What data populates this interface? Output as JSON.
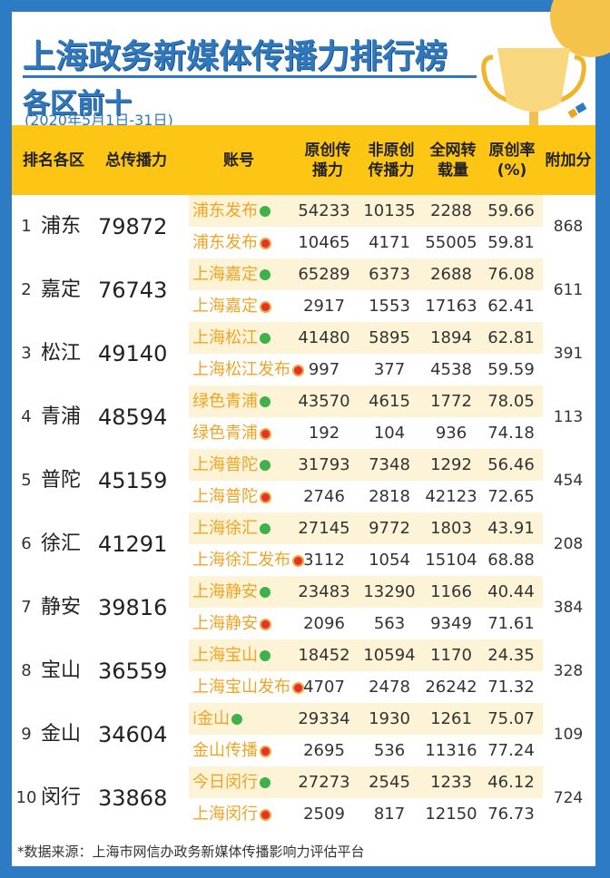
{
  "title": "上海政务新媒体传播力排行榜",
  "subtitle": "各区前十",
  "date": "(2020年5月1日-31日)",
  "colors": {
    "border": "#2c7bc4",
    "header": "#fdc514",
    "account": "#f0a426",
    "title": "#2f78bd",
    "row_highlight": "#fdf3d6"
  },
  "headers": {
    "rank_district": "排名各区",
    "total": "总传播力",
    "account": "账号",
    "original": "原创传播力",
    "non_original": "非原创传播力",
    "reposts": "全网转载量",
    "rate": "原创率(%)",
    "bonus": "附加分"
  },
  "rows": [
    {
      "rank": "1",
      "district": "浦东",
      "total": "79872",
      "bonus": "868",
      "wechat": {
        "account": "浦东发布",
        "original": "54233",
        "non_original": "10135",
        "reposts": "2288",
        "rate": "59.66"
      },
      "weibo": {
        "account": "浦东发布",
        "original": "10465",
        "non_original": "4171",
        "reposts": "55005",
        "rate": "59.81"
      }
    },
    {
      "rank": "2",
      "district": "嘉定",
      "total": "76743",
      "bonus": "611",
      "wechat": {
        "account": "上海嘉定",
        "original": "65289",
        "non_original": "6373",
        "reposts": "2688",
        "rate": "76.08"
      },
      "weibo": {
        "account": "上海嘉定",
        "original": "2917",
        "non_original": "1553",
        "reposts": "17163",
        "rate": "62.41"
      }
    },
    {
      "rank": "3",
      "district": "松江",
      "total": "49140",
      "bonus": "391",
      "wechat": {
        "account": "上海松江",
        "original": "41480",
        "non_original": "5895",
        "reposts": "1894",
        "rate": "62.81"
      },
      "weibo": {
        "account": "上海松江发布",
        "original": "997",
        "non_original": "377",
        "reposts": "4538",
        "rate": "59.59"
      }
    },
    {
      "rank": "4",
      "district": "青浦",
      "total": "48594",
      "bonus": "113",
      "wechat": {
        "account": "绿色青浦",
        "original": "43570",
        "non_original": "4615",
        "reposts": "1772",
        "rate": "78.05"
      },
      "weibo": {
        "account": "绿色青浦",
        "original": "192",
        "non_original": "104",
        "reposts": "936",
        "rate": "74.18"
      }
    },
    {
      "rank": "5",
      "district": "普陀",
      "total": "45159",
      "bonus": "454",
      "wechat": {
        "account": "上海普陀",
        "original": "31793",
        "non_original": "7348",
        "reposts": "1292",
        "rate": "56.46"
      },
      "weibo": {
        "account": "上海普陀",
        "original": "2746",
        "non_original": "2818",
        "reposts": "42123",
        "rate": "72.65"
      }
    },
    {
      "rank": "6",
      "district": "徐汇",
      "total": "41291",
      "bonus": "208",
      "wechat": {
        "account": "上海徐汇",
        "original": "27145",
        "non_original": "9772",
        "reposts": "1803",
        "rate": "43.91"
      },
      "weibo": {
        "account": "上海徐汇发布",
        "original": "3112",
        "non_original": "1054",
        "reposts": "15104",
        "rate": "68.88"
      }
    },
    {
      "rank": "7",
      "district": "静安",
      "total": "39816",
      "bonus": "384",
      "wechat": {
        "account": "上海静安",
        "original": "23483",
        "non_original": "13290",
        "reposts": "1166",
        "rate": "40.44"
      },
      "weibo": {
        "account": "上海静安",
        "original": "2096",
        "non_original": "563",
        "reposts": "9349",
        "rate": "71.61"
      }
    },
    {
      "rank": "8",
      "district": "宝山",
      "total": "36559",
      "bonus": "328",
      "wechat": {
        "account": "上海宝山",
        "original": "18452",
        "non_original": "10594",
        "reposts": "1170",
        "rate": "24.35"
      },
      "weibo": {
        "account": "上海宝山发布",
        "original": "4707",
        "non_original": "2478",
        "reposts": "26242",
        "rate": "71.32"
      }
    },
    {
      "rank": "9",
      "district": "金山",
      "total": "34604",
      "bonus": "109",
      "wechat": {
        "account": "i金山",
        "original": "29334",
        "non_original": "1930",
        "reposts": "1261",
        "rate": "75.07"
      },
      "weibo": {
        "account": "金山传播",
        "original": "2695",
        "non_original": "536",
        "reposts": "11316",
        "rate": "77.24"
      }
    },
    {
      "rank": "10",
      "district": "闵行",
      "total": "33868",
      "bonus": "724",
      "wechat": {
        "account": "今日闵行",
        "original": "27273",
        "non_original": "2545",
        "reposts": "1233",
        "rate": "46.12"
      },
      "weibo": {
        "account": "上海闵行",
        "original": "2509",
        "non_original": "817",
        "reposts": "12150",
        "rate": "76.73"
      }
    }
  ],
  "footer": "*数据来源：上海市网信办政务新媒体传播影响力评估平台"
}
